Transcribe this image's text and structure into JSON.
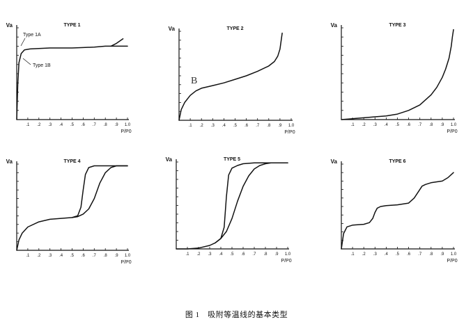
{
  "caption": "图 1　吸附等温线的基本类型",
  "chart_data": [
    {
      "type": "line",
      "title": "TYPE 1",
      "ylabel": "Va",
      "xlabel": "P/P0",
      "xlim": [
        0,
        1.0
      ],
      "ylim": [
        0,
        1.0
      ],
      "xticks": [
        ".1",
        ".2",
        ".3",
        ".4",
        ".5",
        ".6",
        ".7",
        ".8",
        ".9",
        "1.0"
      ],
      "series": [
        {
          "x": [
            0.0,
            0.01,
            0.02,
            0.04,
            0.07,
            0.12,
            0.2,
            0.3,
            0.4,
            0.5,
            0.6,
            0.7,
            0.8,
            0.9,
            1.0
          ],
          "y": [
            0.0,
            0.4,
            0.62,
            0.72,
            0.76,
            0.77,
            0.775,
            0.78,
            0.78,
            0.78,
            0.785,
            0.79,
            0.8,
            0.8,
            0.8
          ]
        },
        {
          "x": [
            0.85,
            0.9,
            0.96
          ],
          "y": [
            0.8,
            0.83,
            0.88
          ]
        }
      ],
      "annotations": [
        "Type 1A",
        "Type 1B"
      ]
    },
    {
      "type": "line",
      "title": "TYPE 2",
      "ylabel": "Va",
      "xlabel": "P/P0",
      "xlim": [
        0,
        1.0
      ],
      "ylim": [
        0,
        1.0
      ],
      "xticks": [
        ".1",
        ".2",
        ".3",
        ".4",
        ".5",
        ".6",
        ".7",
        ".8",
        ".9",
        "1.0"
      ],
      "series": [
        {
          "x": [
            0.0,
            0.02,
            0.05,
            0.1,
            0.15,
            0.2,
            0.3,
            0.4,
            0.5,
            0.6,
            0.7,
            0.8,
            0.85,
            0.88,
            0.9,
            0.92
          ],
          "y": [
            0.0,
            0.12,
            0.2,
            0.28,
            0.33,
            0.36,
            0.39,
            0.42,
            0.46,
            0.5,
            0.55,
            0.61,
            0.66,
            0.72,
            0.8,
            0.98
          ]
        }
      ],
      "annotations": [
        "B"
      ]
    },
    {
      "type": "line",
      "title": "TYPE 3",
      "ylabel": "Va",
      "xlabel": "P/P0",
      "xlim": [
        0,
        1.0
      ],
      "ylim": [
        0,
        1.0
      ],
      "xticks": [
        ".1",
        ".2",
        ".3",
        ".4",
        ".5",
        ".6",
        ".7",
        ".8",
        ".9",
        "1.0"
      ],
      "series": [
        {
          "x": [
            0.0,
            0.1,
            0.2,
            0.3,
            0.4,
            0.5,
            0.6,
            0.7,
            0.8,
            0.85,
            0.9,
            0.93,
            0.96,
            0.98,
            0.99,
            1.0
          ],
          "y": [
            0.0,
            0.01,
            0.02,
            0.03,
            0.04,
            0.06,
            0.1,
            0.16,
            0.27,
            0.35,
            0.46,
            0.55,
            0.67,
            0.8,
            0.9,
            0.98
          ]
        }
      ]
    },
    {
      "type": "line",
      "title": "TYPE 4",
      "ylabel": "Va",
      "xlabel": "P/P0",
      "xlim": [
        0,
        1.0
      ],
      "ylim": [
        0,
        1.0
      ],
      "xticks": [
        ".1",
        ".2",
        ".3",
        ".4",
        ".5",
        ".6",
        ".7",
        ".8",
        ".9",
        "1.0"
      ],
      "series": [
        {
          "x": [
            0.0,
            0.02,
            0.05,
            0.1,
            0.2,
            0.3,
            0.4,
            0.5,
            0.55,
            0.6,
            0.65,
            0.7,
            0.75,
            0.8,
            0.85,
            0.9,
            0.95,
            1.0
          ],
          "y": [
            0.0,
            0.12,
            0.2,
            0.27,
            0.33,
            0.36,
            0.37,
            0.38,
            0.39,
            0.42,
            0.48,
            0.6,
            0.78,
            0.9,
            0.96,
            0.98,
            0.98,
            0.98
          ]
        },
        {
          "x": [
            0.5,
            0.55,
            0.58,
            0.6,
            0.62,
            0.65,
            0.7,
            0.8,
            0.9,
            1.0
          ],
          "y": [
            0.38,
            0.4,
            0.5,
            0.7,
            0.88,
            0.96,
            0.98,
            0.98,
            0.98,
            0.98
          ]
        }
      ]
    },
    {
      "type": "line",
      "title": "TYPE 5",
      "ylabel": "Va",
      "xlabel": "P/P0",
      "xlim": [
        0,
        1.0
      ],
      "ylim": [
        0,
        1.0
      ],
      "xticks": [
        ".1",
        ".2",
        ".3",
        ".4",
        ".5",
        ".6",
        ".7",
        ".8",
        ".9",
        "1.0"
      ],
      "series": [
        {
          "x": [
            0.0,
            0.1,
            0.2,
            0.3,
            0.35,
            0.4,
            0.45,
            0.5,
            0.55,
            0.6,
            0.65,
            0.7,
            0.75,
            0.8,
            0.85,
            0.9,
            0.95,
            1.0
          ],
          "y": [
            0.0,
            0.0,
            0.01,
            0.04,
            0.07,
            0.12,
            0.2,
            0.35,
            0.55,
            0.72,
            0.84,
            0.92,
            0.96,
            0.98,
            0.99,
            0.99,
            0.99,
            0.99
          ]
        },
        {
          "x": [
            0.35,
            0.4,
            0.43,
            0.45,
            0.47,
            0.5,
            0.55,
            0.6,
            0.7,
            0.8,
            0.9,
            1.0
          ],
          "y": [
            0.07,
            0.12,
            0.25,
            0.6,
            0.85,
            0.93,
            0.96,
            0.98,
            0.99,
            0.99,
            0.99,
            0.99
          ]
        }
      ]
    },
    {
      "type": "line",
      "title": "TYPE 6",
      "ylabel": "Va",
      "xlabel": "P/P0",
      "xlim": [
        0,
        1.0
      ],
      "ylim": [
        0,
        1.0
      ],
      "xticks": [
        ".1",
        ".2",
        ".3",
        ".4",
        ".5",
        ".6",
        ".7",
        ".8",
        ".9",
        "1.0"
      ],
      "series": [
        {
          "x": [
            0.0,
            0.02,
            0.05,
            0.1,
            0.2,
            0.25,
            0.28,
            0.3,
            0.32,
            0.35,
            0.4,
            0.5,
            0.6,
            0.65,
            0.7,
            0.72,
            0.75,
            0.8,
            0.9,
            0.95,
            1.0
          ],
          "y": [
            0.0,
            0.18,
            0.26,
            0.28,
            0.29,
            0.31,
            0.36,
            0.43,
            0.48,
            0.5,
            0.51,
            0.52,
            0.54,
            0.6,
            0.7,
            0.74,
            0.76,
            0.78,
            0.8,
            0.84,
            0.9
          ]
        }
      ]
    }
  ]
}
